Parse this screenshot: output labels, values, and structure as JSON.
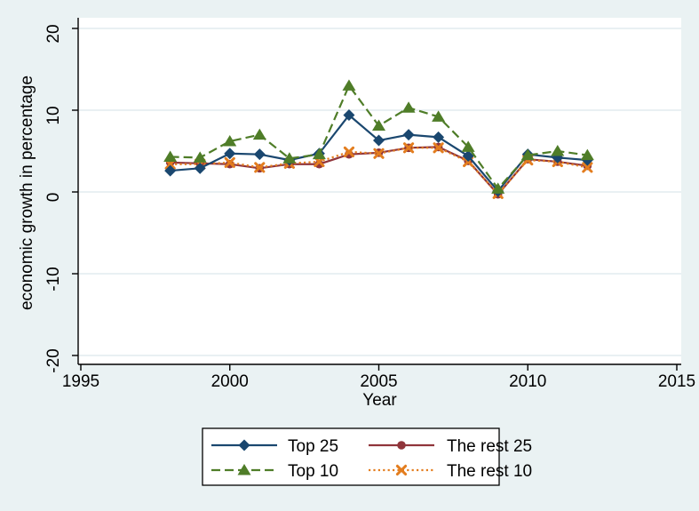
{
  "figure": {
    "background": "#eaf2f3",
    "plot_background": "#ffffff",
    "grid_color": "#e2ecef",
    "axis_color": "#000000",
    "legend_border_color": "#000000",
    "legend_background": "#ffffff"
  },
  "chart_data": {
    "type": "line",
    "title": "",
    "xlabel": "Year",
    "ylabel": "economic growth in percentage",
    "xlim": [
      1995,
      2015
    ],
    "ylim": [
      -20,
      20
    ],
    "x_ticks": [
      1995,
      2000,
      2005,
      2010,
      2015
    ],
    "y_ticks": [
      -20,
      -10,
      0,
      10,
      20
    ],
    "grid": "horizontal",
    "legend_position": "bottom",
    "x": [
      1998,
      1999,
      2000,
      2001,
      2002,
      2003,
      2004,
      2005,
      2006,
      2007,
      2008,
      2009,
      2010,
      2011,
      2012
    ],
    "series": [
      {
        "name": "Top 25",
        "color": "#1a476f",
        "line_style": "solid",
        "marker": "diamond",
        "values": [
          2.6,
          2.9,
          4.7,
          4.6,
          3.9,
          4.7,
          9.4,
          6.3,
          7.0,
          6.7,
          4.4,
          0.1,
          4.6,
          4.2,
          3.9
        ]
      },
      {
        "name": "The rest 25",
        "color": "#90353b",
        "line_style": "solid",
        "marker": "circle",
        "values": [
          3.6,
          3.5,
          3.4,
          2.9,
          3.4,
          3.4,
          4.6,
          4.8,
          5.4,
          5.5,
          3.8,
          -0.3,
          4.0,
          3.7,
          3.2
        ]
      },
      {
        "name": "Top 10",
        "color": "#4f7d28",
        "line_style": "dashed",
        "marker": "triangle",
        "values": [
          4.3,
          4.2,
          6.2,
          7.0,
          4.1,
          4.6,
          13.0,
          8.1,
          10.3,
          9.2,
          5.5,
          0.4,
          4.5,
          5.0,
          4.5
        ]
      },
      {
        "name": "The rest 10",
        "color": "#e37d1e",
        "line_style": "dotted",
        "marker": "x",
        "values": [
          3.4,
          3.4,
          3.6,
          3.0,
          3.5,
          3.7,
          4.9,
          4.7,
          5.4,
          5.4,
          3.7,
          -0.2,
          3.9,
          3.7,
          3.0
        ]
      }
    ],
    "legend_order": [
      "Top 25",
      "The rest 25",
      "Top 10",
      "The rest 10"
    ],
    "draw_order": [
      "The rest 25",
      "The rest 10",
      "Top 25",
      "Top 10"
    ]
  }
}
